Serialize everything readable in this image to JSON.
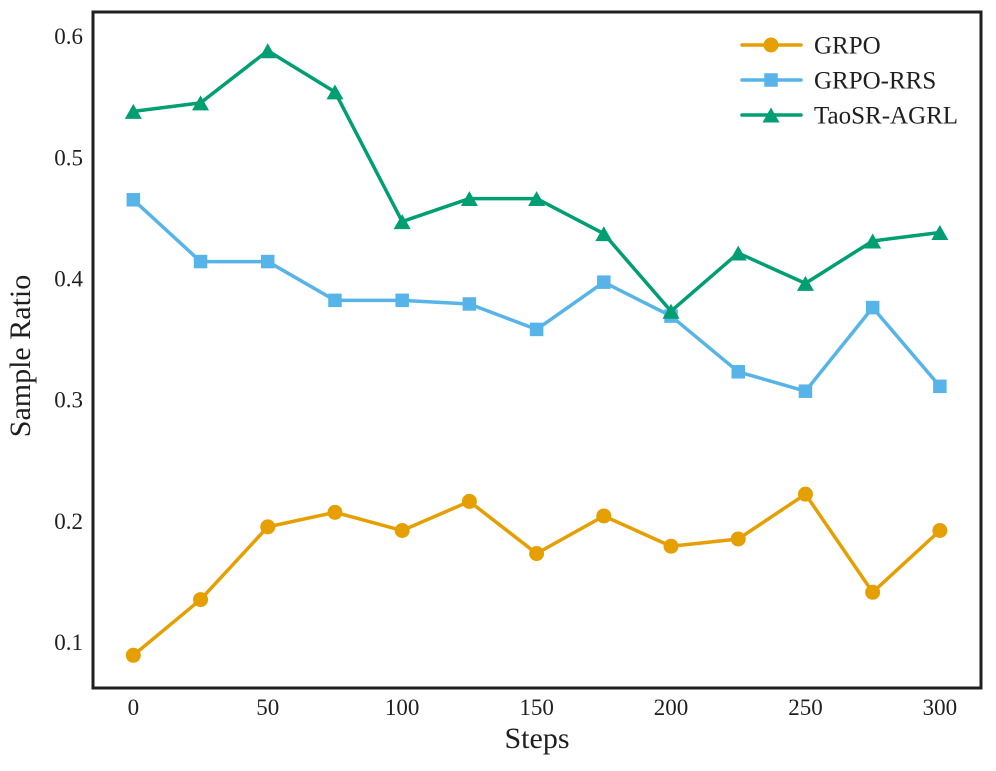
{
  "chart_data": {
    "type": "line",
    "title": "",
    "xlabel": "Steps",
    "ylabel": "Sample Ratio",
    "x": [
      0,
      25,
      50,
      75,
      100,
      125,
      150,
      175,
      200,
      225,
      250,
      275,
      300
    ],
    "series": [
      {
        "name": "GRPO",
        "color": "#E69F00",
        "marker": "circle",
        "values": [
          0.089,
          0.135,
          0.195,
          0.207,
          0.192,
          0.216,
          0.173,
          0.204,
          0.179,
          0.185,
          0.222,
          0.141,
          0.192
        ]
      },
      {
        "name": "GRPO-RRS",
        "color": "#56B4E9",
        "marker": "square",
        "values": [
          0.465,
          0.414,
          0.414,
          0.382,
          0.382,
          0.379,
          0.358,
          0.397,
          0.369,
          0.323,
          0.307,
          0.376,
          0.311
        ]
      },
      {
        "name": "TaoSR-AGRL",
        "color": "#009E73",
        "marker": "triangle",
        "values": [
          0.538,
          0.545,
          0.588,
          0.554,
          0.447,
          0.466,
          0.466,
          0.437,
          0.373,
          0.421,
          0.396,
          0.431,
          0.438
        ]
      }
    ],
    "xtick_values": [
      0,
      50,
      100,
      150,
      200,
      250,
      300
    ],
    "xtick_labels": [
      "0",
      "50",
      "100",
      "150",
      "200",
      "250",
      "300"
    ],
    "ytick_values": [
      0.1,
      0.2,
      0.3,
      0.4,
      0.5,
      0.6
    ],
    "ytick_labels": [
      "0.1",
      "0.2",
      "0.3",
      "0.4",
      "0.5",
      "0.6"
    ],
    "xlim": [
      -15,
      315.3
    ],
    "ylim": [
      0.062,
      0.62
    ],
    "grid": false,
    "legend_position": "upper right",
    "frame_color": "#1f1f1f",
    "text_color": "#1f1f1f"
  }
}
